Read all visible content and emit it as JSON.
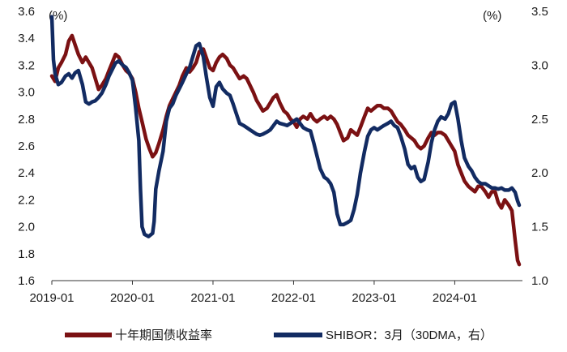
{
  "chart_data": {
    "type": "line",
    "y_left_unit": "(%)",
    "y_right_unit": "(%)",
    "y_left": {
      "min": 1.6,
      "max": 3.6,
      "ticks": [
        "3.6",
        "3.4",
        "3.2",
        "3.0",
        "2.8",
        "2.6",
        "2.4",
        "2.2",
        "2.0",
        "1.8",
        "1.6"
      ],
      "tick_values": [
        3.6,
        3.4,
        3.2,
        3.0,
        2.8,
        2.6,
        2.4,
        2.2,
        2.0,
        1.8,
        1.6
      ]
    },
    "y_right": {
      "min": 1.0,
      "max": 3.5,
      "ticks": [
        "3.5",
        "3.0",
        "2.5",
        "2.0",
        "1.5",
        "1.0"
      ],
      "tick_values": [
        3.5,
        3.0,
        2.5,
        2.0,
        1.5,
        1.0
      ]
    },
    "x_ticks": [
      "2019-01",
      "2020-01",
      "2021-01",
      "2022-01",
      "2023-01",
      "2024-01"
    ],
    "x_tick_values": [
      2019.0,
      2020.0,
      2021.0,
      2022.0,
      2023.0,
      2024.0
    ],
    "x_range": [
      2019.0,
      2024.8
    ],
    "legend": {
      "placement": "bottom"
    },
    "series": [
      {
        "name": "十年期国债收益率",
        "axis": "left",
        "color": "#7b1113",
        "points": [
          [
            2019.0,
            3.12
          ],
          [
            2019.04,
            3.08
          ],
          [
            2019.08,
            3.18
          ],
          [
            2019.12,
            3.22
          ],
          [
            2019.17,
            3.28
          ],
          [
            2019.21,
            3.38
          ],
          [
            2019.25,
            3.42
          ],
          [
            2019.29,
            3.35
          ],
          [
            2019.33,
            3.28
          ],
          [
            2019.38,
            3.22
          ],
          [
            2019.42,
            3.26
          ],
          [
            2019.46,
            3.22
          ],
          [
            2019.5,
            3.18
          ],
          [
            2019.54,
            3.1
          ],
          [
            2019.58,
            3.02
          ],
          [
            2019.62,
            3.05
          ],
          [
            2019.67,
            3.1
          ],
          [
            2019.71,
            3.16
          ],
          [
            2019.75,
            3.22
          ],
          [
            2019.79,
            3.28
          ],
          [
            2019.83,
            3.26
          ],
          [
            2019.88,
            3.2
          ],
          [
            2019.92,
            3.16
          ],
          [
            2019.96,
            3.14
          ],
          [
            2020.0,
            3.1
          ],
          [
            2020.04,
            3.0
          ],
          [
            2020.08,
            2.88
          ],
          [
            2020.12,
            2.78
          ],
          [
            2020.17,
            2.65
          ],
          [
            2020.21,
            2.58
          ],
          [
            2020.25,
            2.52
          ],
          [
            2020.29,
            2.55
          ],
          [
            2020.33,
            2.62
          ],
          [
            2020.38,
            2.72
          ],
          [
            2020.42,
            2.82
          ],
          [
            2020.46,
            2.9
          ],
          [
            2020.5,
            2.95
          ],
          [
            2020.54,
            3.0
          ],
          [
            2020.58,
            3.05
          ],
          [
            2020.62,
            3.12
          ],
          [
            2020.67,
            3.18
          ],
          [
            2020.71,
            3.15
          ],
          [
            2020.75,
            3.18
          ],
          [
            2020.79,
            3.22
          ],
          [
            2020.83,
            3.3
          ],
          [
            2020.88,
            3.32
          ],
          [
            2020.92,
            3.25
          ],
          [
            2020.96,
            3.18
          ],
          [
            2021.0,
            3.16
          ],
          [
            2021.04,
            3.22
          ],
          [
            2021.08,
            3.26
          ],
          [
            2021.12,
            3.28
          ],
          [
            2021.17,
            3.25
          ],
          [
            2021.21,
            3.2
          ],
          [
            2021.25,
            3.18
          ],
          [
            2021.29,
            3.14
          ],
          [
            2021.33,
            3.1
          ],
          [
            2021.38,
            3.12
          ],
          [
            2021.42,
            3.1
          ],
          [
            2021.46,
            3.05
          ],
          [
            2021.5,
            3.0
          ],
          [
            2021.54,
            2.94
          ],
          [
            2021.58,
            2.9
          ],
          [
            2021.62,
            2.86
          ],
          [
            2021.67,
            2.88
          ],
          [
            2021.71,
            2.92
          ],
          [
            2021.75,
            2.96
          ],
          [
            2021.79,
            2.98
          ],
          [
            2021.83,
            2.92
          ],
          [
            2021.88,
            2.86
          ],
          [
            2021.92,
            2.84
          ],
          [
            2021.96,
            2.8
          ],
          [
            2022.0,
            2.78
          ],
          [
            2022.04,
            2.74
          ],
          [
            2022.08,
            2.8
          ],
          [
            2022.12,
            2.82
          ],
          [
            2022.17,
            2.8
          ],
          [
            2022.21,
            2.84
          ],
          [
            2022.25,
            2.8
          ],
          [
            2022.29,
            2.78
          ],
          [
            2022.33,
            2.8
          ],
          [
            2022.38,
            2.82
          ],
          [
            2022.42,
            2.8
          ],
          [
            2022.46,
            2.82
          ],
          [
            2022.5,
            2.8
          ],
          [
            2022.54,
            2.76
          ],
          [
            2022.58,
            2.7
          ],
          [
            2022.62,
            2.64
          ],
          [
            2022.67,
            2.66
          ],
          [
            2022.71,
            2.72
          ],
          [
            2022.75,
            2.7
          ],
          [
            2022.79,
            2.68
          ],
          [
            2022.83,
            2.74
          ],
          [
            2022.88,
            2.82
          ],
          [
            2022.92,
            2.88
          ],
          [
            2022.96,
            2.86
          ],
          [
            2023.0,
            2.88
          ],
          [
            2023.04,
            2.9
          ],
          [
            2023.08,
            2.9
          ],
          [
            2023.12,
            2.88
          ],
          [
            2023.17,
            2.88
          ],
          [
            2023.21,
            2.86
          ],
          [
            2023.25,
            2.82
          ],
          [
            2023.29,
            2.78
          ],
          [
            2023.33,
            2.76
          ],
          [
            2023.38,
            2.72
          ],
          [
            2023.42,
            2.68
          ],
          [
            2023.46,
            2.66
          ],
          [
            2023.5,
            2.64
          ],
          [
            2023.54,
            2.6
          ],
          [
            2023.58,
            2.58
          ],
          [
            2023.62,
            2.6
          ],
          [
            2023.67,
            2.66
          ],
          [
            2023.71,
            2.7
          ],
          [
            2023.75,
            2.68
          ],
          [
            2023.79,
            2.7
          ],
          [
            2023.83,
            2.7
          ],
          [
            2023.88,
            2.68
          ],
          [
            2023.92,
            2.64
          ],
          [
            2023.96,
            2.6
          ],
          [
            2024.0,
            2.56
          ],
          [
            2024.04,
            2.46
          ],
          [
            2024.08,
            2.4
          ],
          [
            2024.12,
            2.34
          ],
          [
            2024.17,
            2.3
          ],
          [
            2024.21,
            2.28
          ],
          [
            2024.25,
            2.26
          ],
          [
            2024.29,
            2.3
          ],
          [
            2024.33,
            2.3
          ],
          [
            2024.38,
            2.26
          ],
          [
            2024.42,
            2.22
          ],
          [
            2024.46,
            2.26
          ],
          [
            2024.5,
            2.26
          ],
          [
            2024.54,
            2.18
          ],
          [
            2024.58,
            2.14
          ],
          [
            2024.62,
            2.2
          ],
          [
            2024.67,
            2.16
          ],
          [
            2024.71,
            2.12
          ],
          [
            2024.75,
            1.9
          ],
          [
            2024.78,
            1.75
          ],
          [
            2024.8,
            1.72
          ]
        ]
      },
      {
        "name": "SHIBOR：3月（30DMA，右）",
        "axis": "right",
        "color": "#122b62",
        "points": [
          [
            2019.0,
            3.45
          ],
          [
            2019.02,
            3.05
          ],
          [
            2019.04,
            2.92
          ],
          [
            2019.08,
            2.82
          ],
          [
            2019.12,
            2.84
          ],
          [
            2019.17,
            2.9
          ],
          [
            2019.21,
            2.92
          ],
          [
            2019.25,
            2.88
          ],
          [
            2019.29,
            2.93
          ],
          [
            2019.33,
            2.95
          ],
          [
            2019.38,
            2.82
          ],
          [
            2019.42,
            2.66
          ],
          [
            2019.46,
            2.64
          ],
          [
            2019.5,
            2.66
          ],
          [
            2019.54,
            2.67
          ],
          [
            2019.58,
            2.7
          ],
          [
            2019.62,
            2.74
          ],
          [
            2019.67,
            2.82
          ],
          [
            2019.71,
            2.9
          ],
          [
            2019.75,
            2.96
          ],
          [
            2019.79,
            3.02
          ],
          [
            2019.83,
            3.04
          ],
          [
            2019.88,
            3.0
          ],
          [
            2019.92,
            2.98
          ],
          [
            2019.96,
            2.93
          ],
          [
            2020.0,
            2.86
          ],
          [
            2020.04,
            2.6
          ],
          [
            2020.08,
            2.3
          ],
          [
            2020.1,
            1.85
          ],
          [
            2020.12,
            1.5
          ],
          [
            2020.15,
            1.43
          ],
          [
            2020.2,
            1.41
          ],
          [
            2020.25,
            1.44
          ],
          [
            2020.27,
            1.55
          ],
          [
            2020.29,
            1.85
          ],
          [
            2020.33,
            2.02
          ],
          [
            2020.38,
            2.2
          ],
          [
            2020.42,
            2.48
          ],
          [
            2020.46,
            2.6
          ],
          [
            2020.5,
            2.64
          ],
          [
            2020.54,
            2.72
          ],
          [
            2020.58,
            2.78
          ],
          [
            2020.62,
            2.84
          ],
          [
            2020.67,
            2.92
          ],
          [
            2020.71,
            2.98
          ],
          [
            2020.75,
            3.08
          ],
          [
            2020.79,
            3.18
          ],
          [
            2020.83,
            3.2
          ],
          [
            2020.88,
            3.08
          ],
          [
            2020.92,
            2.88
          ],
          [
            2020.96,
            2.7
          ],
          [
            2021.0,
            2.62
          ],
          [
            2021.04,
            2.8
          ],
          [
            2021.08,
            2.84
          ],
          [
            2021.12,
            2.78
          ],
          [
            2021.17,
            2.74
          ],
          [
            2021.21,
            2.72
          ],
          [
            2021.25,
            2.64
          ],
          [
            2021.29,
            2.55
          ],
          [
            2021.33,
            2.46
          ],
          [
            2021.38,
            2.44
          ],
          [
            2021.42,
            2.42
          ],
          [
            2021.46,
            2.4
          ],
          [
            2021.5,
            2.38
          ],
          [
            2021.54,
            2.36
          ],
          [
            2021.58,
            2.35
          ],
          [
            2021.62,
            2.36
          ],
          [
            2021.67,
            2.38
          ],
          [
            2021.71,
            2.4
          ],
          [
            2021.75,
            2.44
          ],
          [
            2021.79,
            2.48
          ],
          [
            2021.83,
            2.46
          ],
          [
            2021.88,
            2.45
          ],
          [
            2021.92,
            2.44
          ],
          [
            2021.96,
            2.46
          ],
          [
            2022.0,
            2.48
          ],
          [
            2022.04,
            2.5
          ],
          [
            2022.08,
            2.46
          ],
          [
            2022.12,
            2.42
          ],
          [
            2022.17,
            2.4
          ],
          [
            2022.21,
            2.39
          ],
          [
            2022.25,
            2.28
          ],
          [
            2022.29,
            2.16
          ],
          [
            2022.33,
            2.04
          ],
          [
            2022.38,
            1.96
          ],
          [
            2022.42,
            1.94
          ],
          [
            2022.46,
            1.9
          ],
          [
            2022.5,
            1.82
          ],
          [
            2022.54,
            1.62
          ],
          [
            2022.58,
            1.52
          ],
          [
            2022.62,
            1.52
          ],
          [
            2022.67,
            1.54
          ],
          [
            2022.71,
            1.56
          ],
          [
            2022.75,
            1.66
          ],
          [
            2022.79,
            1.8
          ],
          [
            2022.83,
            2.0
          ],
          [
            2022.88,
            2.2
          ],
          [
            2022.92,
            2.34
          ],
          [
            2022.96,
            2.4
          ],
          [
            2023.0,
            2.42
          ],
          [
            2023.04,
            2.4
          ],
          [
            2023.08,
            2.42
          ],
          [
            2023.12,
            2.44
          ],
          [
            2023.17,
            2.46
          ],
          [
            2023.21,
            2.48
          ],
          [
            2023.25,
            2.44
          ],
          [
            2023.29,
            2.42
          ],
          [
            2023.33,
            2.34
          ],
          [
            2023.38,
            2.22
          ],
          [
            2023.42,
            2.08
          ],
          [
            2023.46,
            2.04
          ],
          [
            2023.5,
            2.06
          ],
          [
            2023.54,
            1.96
          ],
          [
            2023.58,
            1.92
          ],
          [
            2023.62,
            1.94
          ],
          [
            2023.67,
            2.1
          ],
          [
            2023.71,
            2.28
          ],
          [
            2023.75,
            2.4
          ],
          [
            2023.79,
            2.48
          ],
          [
            2023.83,
            2.52
          ],
          [
            2023.88,
            2.5
          ],
          [
            2023.92,
            2.55
          ],
          [
            2023.96,
            2.64
          ],
          [
            2024.0,
            2.66
          ],
          [
            2024.04,
            2.5
          ],
          [
            2024.08,
            2.3
          ],
          [
            2024.12,
            2.14
          ],
          [
            2024.17,
            2.06
          ],
          [
            2024.21,
            2.02
          ],
          [
            2024.25,
            1.96
          ],
          [
            2024.29,
            1.92
          ],
          [
            2024.33,
            1.9
          ],
          [
            2024.38,
            1.9
          ],
          [
            2024.42,
            1.88
          ],
          [
            2024.46,
            1.86
          ],
          [
            2024.5,
            1.86
          ],
          [
            2024.54,
            1.85
          ],
          [
            2024.58,
            1.86
          ],
          [
            2024.62,
            1.84
          ],
          [
            2024.67,
            1.84
          ],
          [
            2024.71,
            1.86
          ],
          [
            2024.75,
            1.82
          ],
          [
            2024.78,
            1.74
          ],
          [
            2024.8,
            1.7
          ]
        ]
      }
    ]
  }
}
